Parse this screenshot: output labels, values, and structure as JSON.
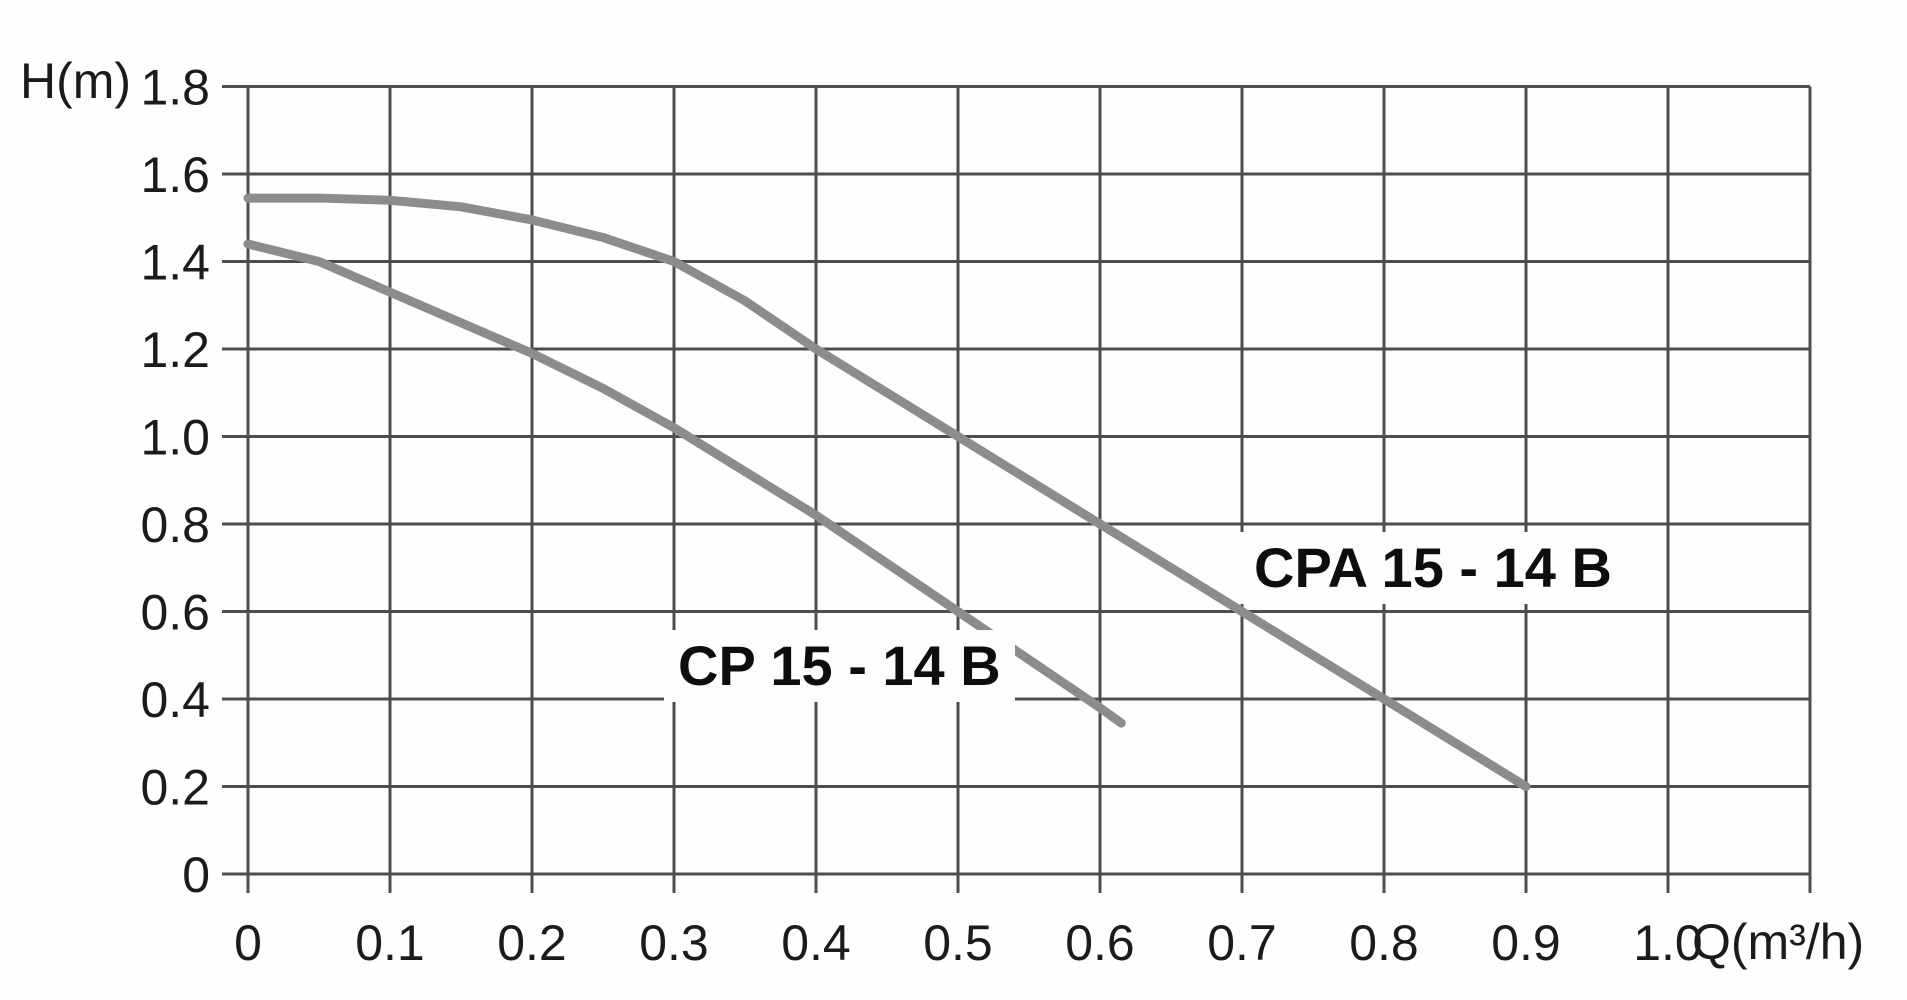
{
  "chart_data": {
    "type": "line",
    "title": "",
    "xlabel": "Q(m³/h)",
    "ylabel": "H(m)",
    "xlim": [
      0,
      1.1
    ],
    "ylim": [
      0,
      1.8
    ],
    "grid": true,
    "legend_position": "inline-labels",
    "xticks": [
      {
        "v": 0.0,
        "label": "0"
      },
      {
        "v": 0.1,
        "label": "0.1"
      },
      {
        "v": 0.2,
        "label": "0.2"
      },
      {
        "v": 0.3,
        "label": "0.3"
      },
      {
        "v": 0.4,
        "label": "0.4"
      },
      {
        "v": 0.5,
        "label": "0.5"
      },
      {
        "v": 0.6,
        "label": "0.6"
      },
      {
        "v": 0.7,
        "label": "0.7"
      },
      {
        "v": 0.8,
        "label": "0.8"
      },
      {
        "v": 0.9,
        "label": "0.9"
      },
      {
        "v": 1.0,
        "label": "1.0"
      }
    ],
    "yticks": [
      {
        "v": 0.0,
        "label": "0"
      },
      {
        "v": 0.2,
        "label": "0.2"
      },
      {
        "v": 0.4,
        "label": "0.4"
      },
      {
        "v": 0.6,
        "label": "0.6"
      },
      {
        "v": 0.8,
        "label": "0.8"
      },
      {
        "v": 1.0,
        "label": "1.0"
      },
      {
        "v": 1.2,
        "label": "1.2"
      },
      {
        "v": 1.4,
        "label": "1.4"
      },
      {
        "v": 1.6,
        "label": "1.6"
      },
      {
        "v": 1.8,
        "label": "1.8"
      }
    ],
    "series": [
      {
        "name": "CPA 15 - 14 B",
        "points": [
          [
            0.0,
            1.545
          ],
          [
            0.05,
            1.545
          ],
          [
            0.1,
            1.54
          ],
          [
            0.15,
            1.525
          ],
          [
            0.2,
            1.495
          ],
          [
            0.25,
            1.455
          ],
          [
            0.3,
            1.4
          ],
          [
            0.35,
            1.31
          ],
          [
            0.4,
            1.2
          ],
          [
            0.45,
            1.1
          ],
          [
            0.5,
            1.0
          ],
          [
            0.55,
            0.9
          ],
          [
            0.6,
            0.8
          ],
          [
            0.65,
            0.7
          ],
          [
            0.7,
            0.6
          ],
          [
            0.75,
            0.5
          ],
          [
            0.8,
            0.4
          ],
          [
            0.85,
            0.3
          ],
          [
            0.9,
            0.2
          ]
        ]
      },
      {
        "name": "CP 15 - 14 B",
        "points": [
          [
            0.0,
            1.44
          ],
          [
            0.05,
            1.4
          ],
          [
            0.1,
            1.33
          ],
          [
            0.15,
            1.26
          ],
          [
            0.2,
            1.19
          ],
          [
            0.25,
            1.11
          ],
          [
            0.3,
            1.02
          ],
          [
            0.35,
            0.92
          ],
          [
            0.4,
            0.82
          ],
          [
            0.45,
            0.71
          ],
          [
            0.5,
            0.6
          ],
          [
            0.55,
            0.49
          ],
          [
            0.6,
            0.38
          ],
          [
            0.615,
            0.345
          ]
        ]
      }
    ],
    "colors": {
      "curve": "#8c8c8c",
      "grid": "#4d4d4d",
      "text": "#1b1b1b",
      "background": "#fefefe"
    }
  }
}
